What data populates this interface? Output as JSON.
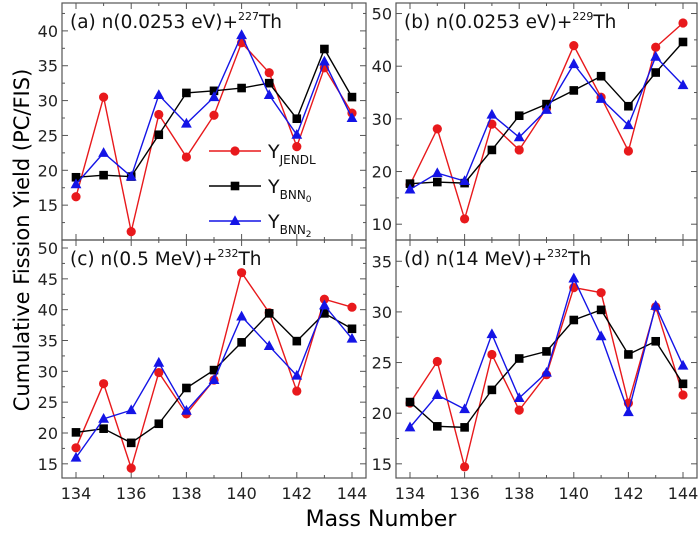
{
  "chart_data": [
    {
      "type": "line",
      "id": "a",
      "title": {
        "prefix": "(a) n(0.0253 eV)+",
        "sup": "227",
        "suffix": "Th"
      },
      "x": [
        134,
        135,
        136,
        137,
        138,
        139,
        140,
        141,
        142,
        143,
        144
      ],
      "ylim": [
        10,
        44
      ],
      "yticks": [
        15,
        20,
        25,
        30,
        35,
        40
      ],
      "series": [
        {
          "name": "Y_JENDL",
          "values": [
            16.2,
            30.5,
            11.2,
            28.0,
            21.9,
            27.9,
            38.3,
            34.0,
            23.4,
            34.7,
            28.2
          ]
        },
        {
          "name": "Y_BNN0",
          "values": [
            19.0,
            19.3,
            19.1,
            25.1,
            31.1,
            31.4,
            31.8,
            32.5,
            27.4,
            37.4,
            30.5
          ]
        },
        {
          "name": "Y_BNN2",
          "values": [
            18.0,
            22.5,
            19.1,
            30.8,
            26.7,
            30.5,
            39.4,
            30.8,
            25.1,
            35.6,
            27.5
          ]
        }
      ]
    },
    {
      "type": "line",
      "id": "b",
      "title": {
        "prefix": "(b) n(0.0253 eV)+",
        "sup": "229",
        "suffix": "Th"
      },
      "x": [
        134,
        135,
        136,
        137,
        138,
        139,
        140,
        141,
        142,
        143,
        144
      ],
      "ylim": [
        7,
        52
      ],
      "yticks": [
        10,
        20,
        30,
        40,
        50
      ],
      "series": [
        {
          "name": "Y_JENDL",
          "values": [
            17.5,
            28.1,
            11.0,
            29.0,
            24.1,
            32.0,
            43.9,
            34.1,
            23.9,
            43.6,
            48.2
          ]
        },
        {
          "name": "Y_BNN0",
          "values": [
            17.7,
            18.0,
            17.8,
            24.1,
            30.6,
            32.8,
            35.4,
            38.1,
            32.4,
            38.8,
            44.6
          ]
        },
        {
          "name": "Y_BNN2",
          "values": [
            16.6,
            19.7,
            18.2,
            30.8,
            26.5,
            31.7,
            40.4,
            33.8,
            28.8,
            41.8,
            36.4
          ]
        }
      ]
    },
    {
      "type": "line",
      "id": "c",
      "title": {
        "prefix": "(c) n(0.5 MeV)+",
        "sup": "232",
        "suffix": "Th"
      },
      "x": [
        134,
        135,
        136,
        137,
        138,
        139,
        140,
        141,
        142,
        143,
        144
      ],
      "ylim": [
        12.7,
        51.3
      ],
      "yticks": [
        15,
        20,
        25,
        30,
        35,
        40,
        45,
        50
      ],
      "series": [
        {
          "name": "Y_JENDL",
          "values": [
            17.6,
            28.0,
            14.3,
            29.8,
            23.1,
            28.6,
            46.0,
            39.5,
            26.8,
            41.7,
            40.4
          ]
        },
        {
          "name": "Y_BNN0",
          "values": [
            20.1,
            20.7,
            18.4,
            21.5,
            27.3,
            30.2,
            34.7,
            39.4,
            34.9,
            39.4,
            36.9
          ]
        },
        {
          "name": "Y_BNN2",
          "values": [
            16.0,
            22.3,
            23.7,
            31.4,
            23.6,
            28.6,
            38.9,
            34.1,
            29.3,
            40.7,
            35.3
          ]
        }
      ]
    },
    {
      "type": "line",
      "id": "d",
      "title": {
        "prefix": "(d) n(14 MeV)+",
        "sup": "232",
        "suffix": "Th"
      },
      "x": [
        134,
        135,
        136,
        137,
        138,
        139,
        140,
        141,
        142,
        143,
        144
      ],
      "ylim": [
        13.6,
        37.1
      ],
      "yticks": [
        15,
        20,
        25,
        30,
        35
      ],
      "series": [
        {
          "name": "Y_JENDL",
          "values": [
            21.0,
            25.1,
            14.7,
            25.8,
            20.3,
            23.8,
            32.4,
            31.9,
            21.0,
            30.5,
            21.8
          ]
        },
        {
          "name": "Y_BNN0",
          "values": [
            21.1,
            18.7,
            18.6,
            22.3,
            25.4,
            26.1,
            29.2,
            30.2,
            25.8,
            27.1,
            22.9
          ]
        },
        {
          "name": "Y_BNN2",
          "values": [
            18.6,
            21.8,
            20.4,
            27.8,
            21.5,
            24.0,
            33.3,
            27.6,
            20.1,
            30.6,
            24.7
          ]
        }
      ]
    }
  ],
  "xticks": [
    134,
    136,
    138,
    140,
    142,
    144
  ],
  "xlabel": "Mass Number",
  "ylabel": "Cumulative Fission Yield (PC/FIS)",
  "legend": {
    "placement": "inside panel (a), lower-right",
    "entries": [
      {
        "base": "Y",
        "sub": "JENDL",
        "subsub": ""
      },
      {
        "base": "Y",
        "sub": "BNN",
        "subsub": "0"
      },
      {
        "base": "Y",
        "sub": "BNN",
        "subsub": "2"
      }
    ]
  },
  "colors": {
    "jendl": "#e8191c",
    "bnn0": "#000000",
    "bnn2": "#1414e6"
  }
}
